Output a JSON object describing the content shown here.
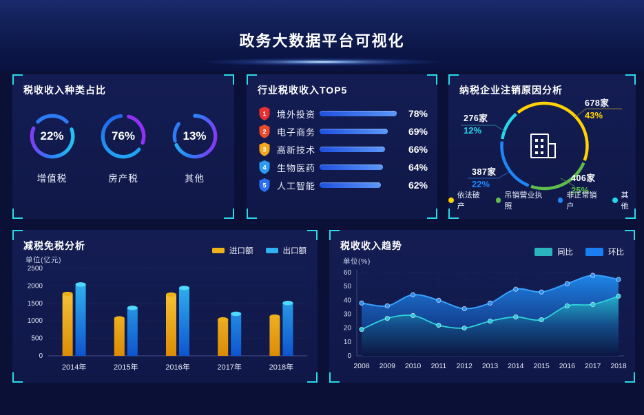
{
  "header": {
    "title": "政务大数据平台可视化"
  },
  "accent": {
    "bracket_cyan": "#2adbe9",
    "panel_bg": "#121a4e"
  },
  "panels": {
    "tax_type": {
      "title": "税收收入种类占比",
      "rings": [
        {
          "percent": "22%",
          "label": "增值税"
        },
        {
          "percent": "76%",
          "label": "房产税"
        },
        {
          "percent": "13%",
          "label": "其他"
        }
      ]
    },
    "industry_top5": {
      "title": "行业税收收入TOP5",
      "rows": [
        {
          "rank": "1",
          "label": "境外投资",
          "pct": "78%",
          "value": 78,
          "badge_color": "#e93030"
        },
        {
          "rank": "2",
          "label": "电子商务",
          "pct": "69%",
          "value": 69,
          "badge_color": "#ea4a28"
        },
        {
          "rank": "3",
          "label": "高新技术",
          "pct": "66%",
          "value": 66,
          "badge_color": "#f2a81d"
        },
        {
          "rank": "4",
          "label": "生物医药",
          "pct": "64%",
          "value": 64,
          "badge_color": "#2b9cf2"
        },
        {
          "rank": "5",
          "label": "人工智能",
          "pct": "62%",
          "value": 62,
          "badge_color": "#2b6ff2"
        }
      ]
    },
    "cancellation": {
      "title": "纳税企业注销原因分析",
      "segments": [
        {
          "name": "依法破产",
          "count": "678家",
          "pct": "43%",
          "value": 43,
          "color": "#ffd200"
        },
        {
          "name": "吊销营业执照",
          "count": "406家",
          "pct": "25%",
          "value": 25,
          "color": "#5fbe4b"
        },
        {
          "name": "非正常销户",
          "count": "387家",
          "pct": "22%",
          "value": 22,
          "color": "#1f86f8"
        },
        {
          "name": "其他",
          "count": "276家",
          "pct": "12%",
          "value": 12,
          "color": "#25d8e8"
        }
      ]
    },
    "tax_reduction": {
      "title": "减税免税分析",
      "unit": "单位(亿元)"
    },
    "revenue_trend": {
      "title": "税收收入趋势",
      "unit": "单位(%)"
    }
  },
  "chart_data": [
    {
      "type": "pie",
      "variant": "percent-rings",
      "title": "税收收入种类占比",
      "series": [
        {
          "label": "增值税",
          "value": 22
        },
        {
          "label": "房产税",
          "value": 76
        },
        {
          "label": "其他",
          "value": 13
        }
      ],
      "unit": "%"
    },
    {
      "type": "bar",
      "variant": "horizontal-ranked",
      "title": "行业税收收入TOP5",
      "categories": [
        "境外投资",
        "电子商务",
        "高新技术",
        "生物医药",
        "人工智能"
      ],
      "values": [
        78,
        69,
        66,
        64,
        62
      ],
      "unit": "%",
      "xlim": [
        0,
        80
      ]
    },
    {
      "type": "pie",
      "variant": "donut",
      "title": "纳税企业注销原因分析",
      "slices": [
        {
          "label": "依法破产",
          "count": 678,
          "pct": 43,
          "color": "#ffd200"
        },
        {
          "label": "吊销营业执照",
          "count": 406,
          "pct": 25,
          "color": "#5fbe4b"
        },
        {
          "label": "非正常销户",
          "count": 387,
          "pct": 22,
          "color": "#1f86f8"
        },
        {
          "label": "其他",
          "count": 276,
          "pct": 12,
          "color": "#25d8e8"
        }
      ],
      "legend_position": "bottom"
    },
    {
      "type": "bar",
      "title": "减税免税分析",
      "ylabel": "单位(亿元)",
      "ylim": [
        0,
        2500
      ],
      "yticks": [
        0,
        500,
        1000,
        1500,
        2000,
        2500
      ],
      "categories": [
        "2014年",
        "2015年",
        "2016年",
        "2017年",
        "2018年"
      ],
      "series": [
        {
          "name": "进口额",
          "color": "#eeb417",
          "values": [
            1830,
            1130,
            1810,
            1100,
            1180
          ]
        },
        {
          "name": "出口额",
          "color": "#2fb3f0",
          "values": [
            2100,
            1430,
            2000,
            1260,
            1570
          ]
        }
      ],
      "grid": "dotted",
      "legend_position": "top-right"
    },
    {
      "type": "area",
      "title": "税收收入趋势",
      "ylabel": "单位(%)",
      "ylim": [
        0,
        60
      ],
      "yticks": [
        0,
        10,
        20,
        30,
        40,
        50,
        60
      ],
      "x": [
        "2008",
        "2009",
        "2010",
        "2011",
        "2012",
        "2013",
        "2014",
        "2015",
        "2016",
        "2017",
        "2018"
      ],
      "series": [
        {
          "name": "同比",
          "color": "#2ab4be",
          "values": [
            19,
            27,
            29,
            22,
            20,
            25,
            28,
            26,
            36,
            37,
            43
          ]
        },
        {
          "name": "环比",
          "color": "#1a7df2",
          "values": [
            38,
            36,
            44,
            40,
            34,
            38,
            48,
            46,
            52,
            58,
            55
          ]
        }
      ],
      "grid": "dotted",
      "legend_position": "top-right",
      "smooth": true
    }
  ]
}
